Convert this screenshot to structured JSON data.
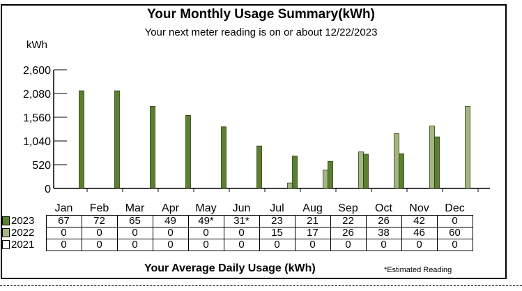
{
  "header": {
    "title": "Your Monthly Usage Summary(kWh)",
    "subtitle": "Your next meter reading is on or about 12/22/2023"
  },
  "chart_data": {
    "type": "bar",
    "title": "Your Monthly Usage Summary(kWh)",
    "subtitle": "Your next meter reading is on or about 12/22/2023",
    "ylabel": "kWh",
    "xlabel": "",
    "ylim": [
      0,
      2600
    ],
    "yticks": [
      0,
      520,
      1040,
      1560,
      2080,
      2600
    ],
    "ytick_labels": [
      "0",
      "520",
      "1,040",
      "1,560",
      "2,080",
      "2,600"
    ],
    "categories": [
      "Jan",
      "Feb",
      "Mar",
      "Apr",
      "May",
      "Jun",
      "Jul",
      "Aug",
      "Sep",
      "Oct",
      "Nov",
      "Dec"
    ],
    "series": [
      {
        "name": "2021",
        "color": "#ffffff",
        "values": [
          0,
          0,
          0,
          0,
          0,
          0,
          0,
          0,
          0,
          0,
          0,
          0
        ]
      },
      {
        "name": "2022",
        "color": "#a4b681",
        "values": [
          0,
          0,
          0,
          0,
          0,
          0,
          120,
          400,
          800,
          1200,
          1370,
          1800
        ]
      },
      {
        "name": "2023",
        "color": "#5b8130",
        "values": [
          2140,
          2140,
          1800,
          1600,
          1350,
          930,
          710,
          590,
          750,
          760,
          1130,
          0
        ]
      }
    ],
    "grid": false,
    "legend": "left-of-table"
  },
  "table": {
    "months": [
      "Jan",
      "Feb",
      "Mar",
      "Apr",
      "May",
      "Jun",
      "Jul",
      "Aug",
      "Sep",
      "Oct",
      "Nov",
      "Dec"
    ],
    "rows": [
      {
        "year": "2023",
        "swatch_color": "#5b8130",
        "values": [
          "67",
          "72",
          "65",
          "49",
          "49*",
          "31*",
          "23",
          "21",
          "22",
          "26",
          "42",
          "0"
        ]
      },
      {
        "year": "2022",
        "swatch_color": "#a4b681",
        "values": [
          "0",
          "0",
          "0",
          "0",
          "0",
          "0",
          "15",
          "17",
          "26",
          "38",
          "46",
          "60"
        ]
      },
      {
        "year": "2021",
        "swatch_color": "#ffffff",
        "values": [
          "0",
          "0",
          "0",
          "0",
          "0",
          "0",
          "0",
          "0",
          "0",
          "0",
          "0",
          "0"
        ]
      }
    ],
    "caption": "Your Average Daily Usage (kWh)",
    "note": "*Estimated Reading"
  }
}
